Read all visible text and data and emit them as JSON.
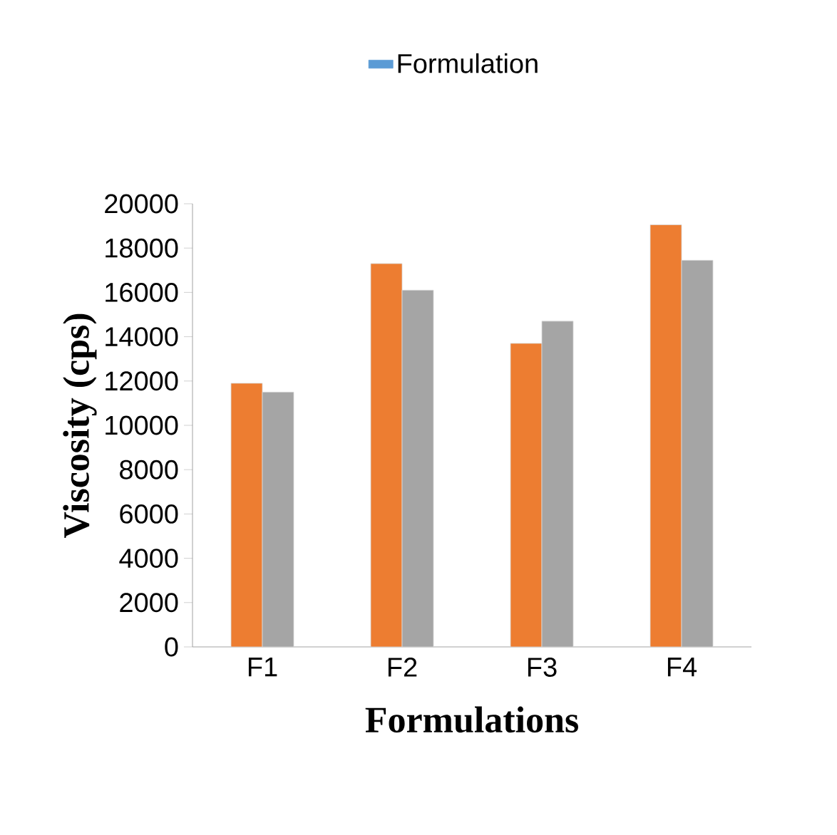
{
  "chart_data": {
    "type": "bar",
    "xlabel": "Formulations",
    "ylabel": "Viscosity (cps)",
    "categories": [
      "F1",
      "F2",
      "F3",
      "F4"
    ],
    "series": [
      {
        "name": "Formulation",
        "color": "#5b9bd5",
        "values": [
          null,
          null,
          null,
          null
        ]
      },
      {
        "color": "#ed7d31",
        "values": [
          11900,
          17300,
          13700,
          19050
        ]
      },
      {
        "color": "#a5a5a5",
        "values": [
          11500,
          16100,
          14700,
          17450
        ]
      }
    ],
    "ylim": [
      0,
      20000
    ],
    "yticks": [
      0,
      2000,
      4000,
      6000,
      8000,
      10000,
      12000,
      14000,
      16000,
      18000,
      20000
    ],
    "grid": false,
    "legend": "top"
  }
}
